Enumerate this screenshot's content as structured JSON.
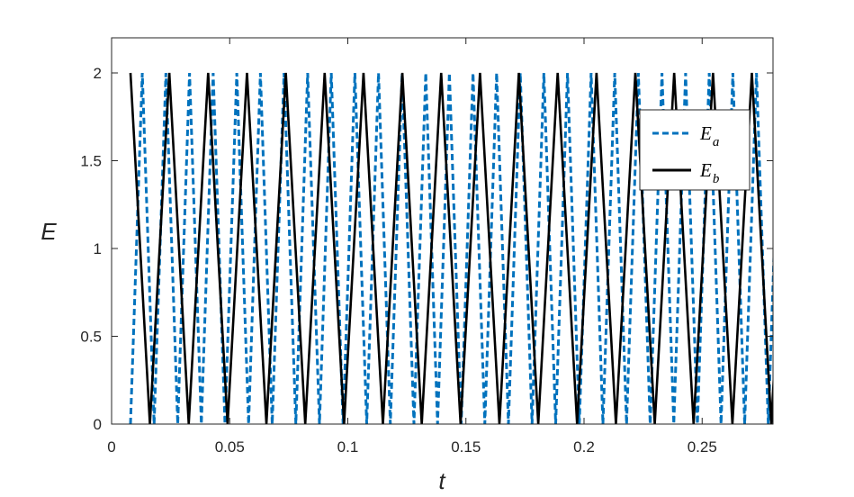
{
  "chart_data": {
    "type": "line",
    "title": "",
    "xlabel": "t",
    "ylabel": "E",
    "xlim": [
      0,
      0.28
    ],
    "ylim": [
      0,
      2.2
    ],
    "x_ticks": [
      "0",
      "0.05",
      "0.1",
      "0.15",
      "0.2",
      "0.25"
    ],
    "x_tick_values": [
      0,
      0.05,
      0.1,
      0.15,
      0.2,
      0.25
    ],
    "y_ticks": [
      "0",
      "0.5",
      "1",
      "1.5",
      "2"
    ],
    "y_tick_values": [
      0,
      0.5,
      1,
      1.5,
      2
    ],
    "grid": false,
    "legend_position": "top-right",
    "series": [
      {
        "name": "E_a",
        "name_main": "E",
        "name_sub": "a",
        "style": "dashed",
        "color": "#0072BD",
        "form": "triangle wave between 0 and 2",
        "x_start": 0.008,
        "y_start": 0,
        "half_period": 0.005,
        "amplitude_min": 0,
        "amplitude_max": 2
      },
      {
        "name": "E_b",
        "name_main": "E",
        "name_sub": "b",
        "style": "solid",
        "color": "#000000",
        "form": "triangle wave between 0 and 2",
        "x_start": 0.008,
        "y_start": 2,
        "half_period": 0.00822,
        "amplitude_min": 0,
        "amplitude_max": 2
      }
    ]
  }
}
